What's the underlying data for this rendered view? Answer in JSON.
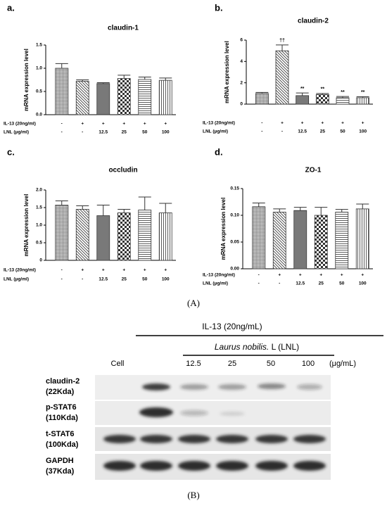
{
  "charts_caption": "(A)",
  "chart_data": [
    {
      "type": "bar",
      "panel": "a.",
      "title": "claudin-1",
      "y_label": "mRNA expression level",
      "values": [
        1.0,
        0.72,
        0.67,
        0.78,
        0.76,
        0.74
      ],
      "errors": [
        0.1,
        0.03,
        0.02,
        0.07,
        0.05,
        0.05
      ],
      "ylim": [
        0,
        1.5
      ],
      "yticks": [
        {
          "value": 0,
          "label": "0.0"
        },
        {
          "value": 0.5,
          "label": "0.5"
        },
        {
          "value": 1,
          "label": "1.0"
        },
        {
          "value": 1.5,
          "label": "1.5"
        }
      ],
      "conditions": [
        {
          "label": "IL-13 (20ng/ml)",
          "values": [
            "-",
            "+",
            "+",
            "+",
            "+",
            "+"
          ]
        },
        {
          "label": "LNL (μg/ml)",
          "values": [
            "-",
            "-",
            "12.5",
            "25",
            "50",
            "100"
          ]
        }
      ]
    },
    {
      "type": "bar",
      "panel": "b.",
      "title": "claudin-2",
      "y_label": "mRNA expression level",
      "values": [
        1.0,
        5.0,
        0.8,
        0.9,
        0.6,
        0.6
      ],
      "errors": [
        0.1,
        0.55,
        0.25,
        0.1,
        0.12,
        0.1
      ],
      "annotations": [
        null,
        "††",
        "**",
        "**",
        "**",
        "**"
      ],
      "ylim": [
        0,
        6
      ],
      "yticks": [
        0,
        2,
        4,
        6
      ],
      "conditions": [
        {
          "label": "IL-13 (20ng/ml)",
          "values": [
            "-",
            "+",
            "+",
            "+",
            "+",
            "+"
          ]
        },
        {
          "label": "LNL  (μg/ml)",
          "values": [
            "-",
            "-",
            "12.5",
            "25",
            "50",
            "100"
          ]
        }
      ]
    },
    {
      "type": "bar",
      "panel": "c.",
      "title": "occludin",
      "y_label": "mRNA expression level",
      "values": [
        1.57,
        1.45,
        1.27,
        1.35,
        1.43,
        1.35
      ],
      "errors": [
        0.12,
        0.1,
        0.3,
        0.1,
        0.37,
        0.27
      ],
      "ylim": [
        0,
        2
      ],
      "yticks": [
        0,
        0.5,
        {
          "value": 1,
          "label": "1.0"
        },
        1.5,
        {
          "value": 2,
          "label": "2.0"
        }
      ],
      "conditions": [
        {
          "label": "IL-13 (20ng/ml)",
          "values": [
            "-",
            "+",
            "+",
            "+",
            "+",
            "+"
          ]
        },
        {
          "label": "LNL  (μg/ml)",
          "values": [
            "-",
            "-",
            "12.5",
            "25",
            "50",
            "100"
          ]
        }
      ]
    },
    {
      "type": "bar",
      "panel": "d.",
      "title": "ZO-1",
      "y_label": "mRNA expression level",
      "values": [
        0.116,
        0.106,
        0.109,
        0.1,
        0.106,
        0.112
      ],
      "errors": [
        0.007,
        0.006,
        0.006,
        0.015,
        0.005,
        0.009
      ],
      "ylim": [
        0,
        0.15
      ],
      "yticks": [
        {
          "value": 0,
          "label": "0.00"
        },
        0.05,
        {
          "value": 0.1,
          "label": "0.10"
        },
        0.15
      ],
      "conditions": [
        {
          "label": "IL-13 (20ng/ml)",
          "values": [
            "-",
            "+",
            "+",
            "+",
            "+",
            "+"
          ]
        },
        {
          "label": "LNL  (μg/ml)",
          "values": [
            "-",
            "-",
            "12.5",
            "25",
            "50",
            "100"
          ]
        }
      ]
    }
  ],
  "blot": {
    "caption": "(B)",
    "header": "IL-13 (20ng/mL)",
    "treatment_italic": "Laurus nobilis.",
    "treatment_rest": " L (LNL)",
    "lanes": [
      "Cell",
      "12.5",
      "25",
      "50",
      "100"
    ],
    "unit": "(μg/mL)",
    "rows": [
      {
        "name": "claudin-2",
        "size": "(22Kda)"
      },
      {
        "name": "p-STAT6",
        "size": "(110Kda)"
      },
      {
        "name": "t-STAT6",
        "size": "(100Kda)"
      },
      {
        "name": "GAPDH",
        "size": "(37Kda)"
      }
    ]
  }
}
